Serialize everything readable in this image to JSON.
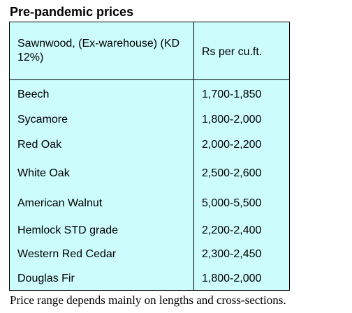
{
  "title": "Pre-pandemic prices",
  "table": {
    "header": {
      "col1": "Sawnwood, (Ex-warehouse) (KD 12%)",
      "col2": "Rs per cu.ft."
    },
    "rows": [
      {
        "name": "Beech",
        "price": "1,700-1,850"
      },
      {
        "name": "Sycamore",
        "price": "1,800-2,000"
      },
      {
        "name": "Red Oak",
        "price": "2,000-2,200"
      },
      {
        "name": "White Oak",
        "price": "2,500-2,600"
      },
      {
        "name": "American Walnut",
        "price": "5,000-5,500"
      },
      {
        "name": "Hemlock STD grade",
        "price": "2,200-2,400"
      },
      {
        "name": "Western Red Cedar",
        "price": "2,300-2,450"
      },
      {
        "name": "Douglas Fir",
        "price": "1,800-2,000"
      }
    ]
  },
  "footer": "Price range depends mainly on lengths and cross-sections.",
  "colors": {
    "table_background": "#ccfcfc",
    "border": "#000000"
  }
}
